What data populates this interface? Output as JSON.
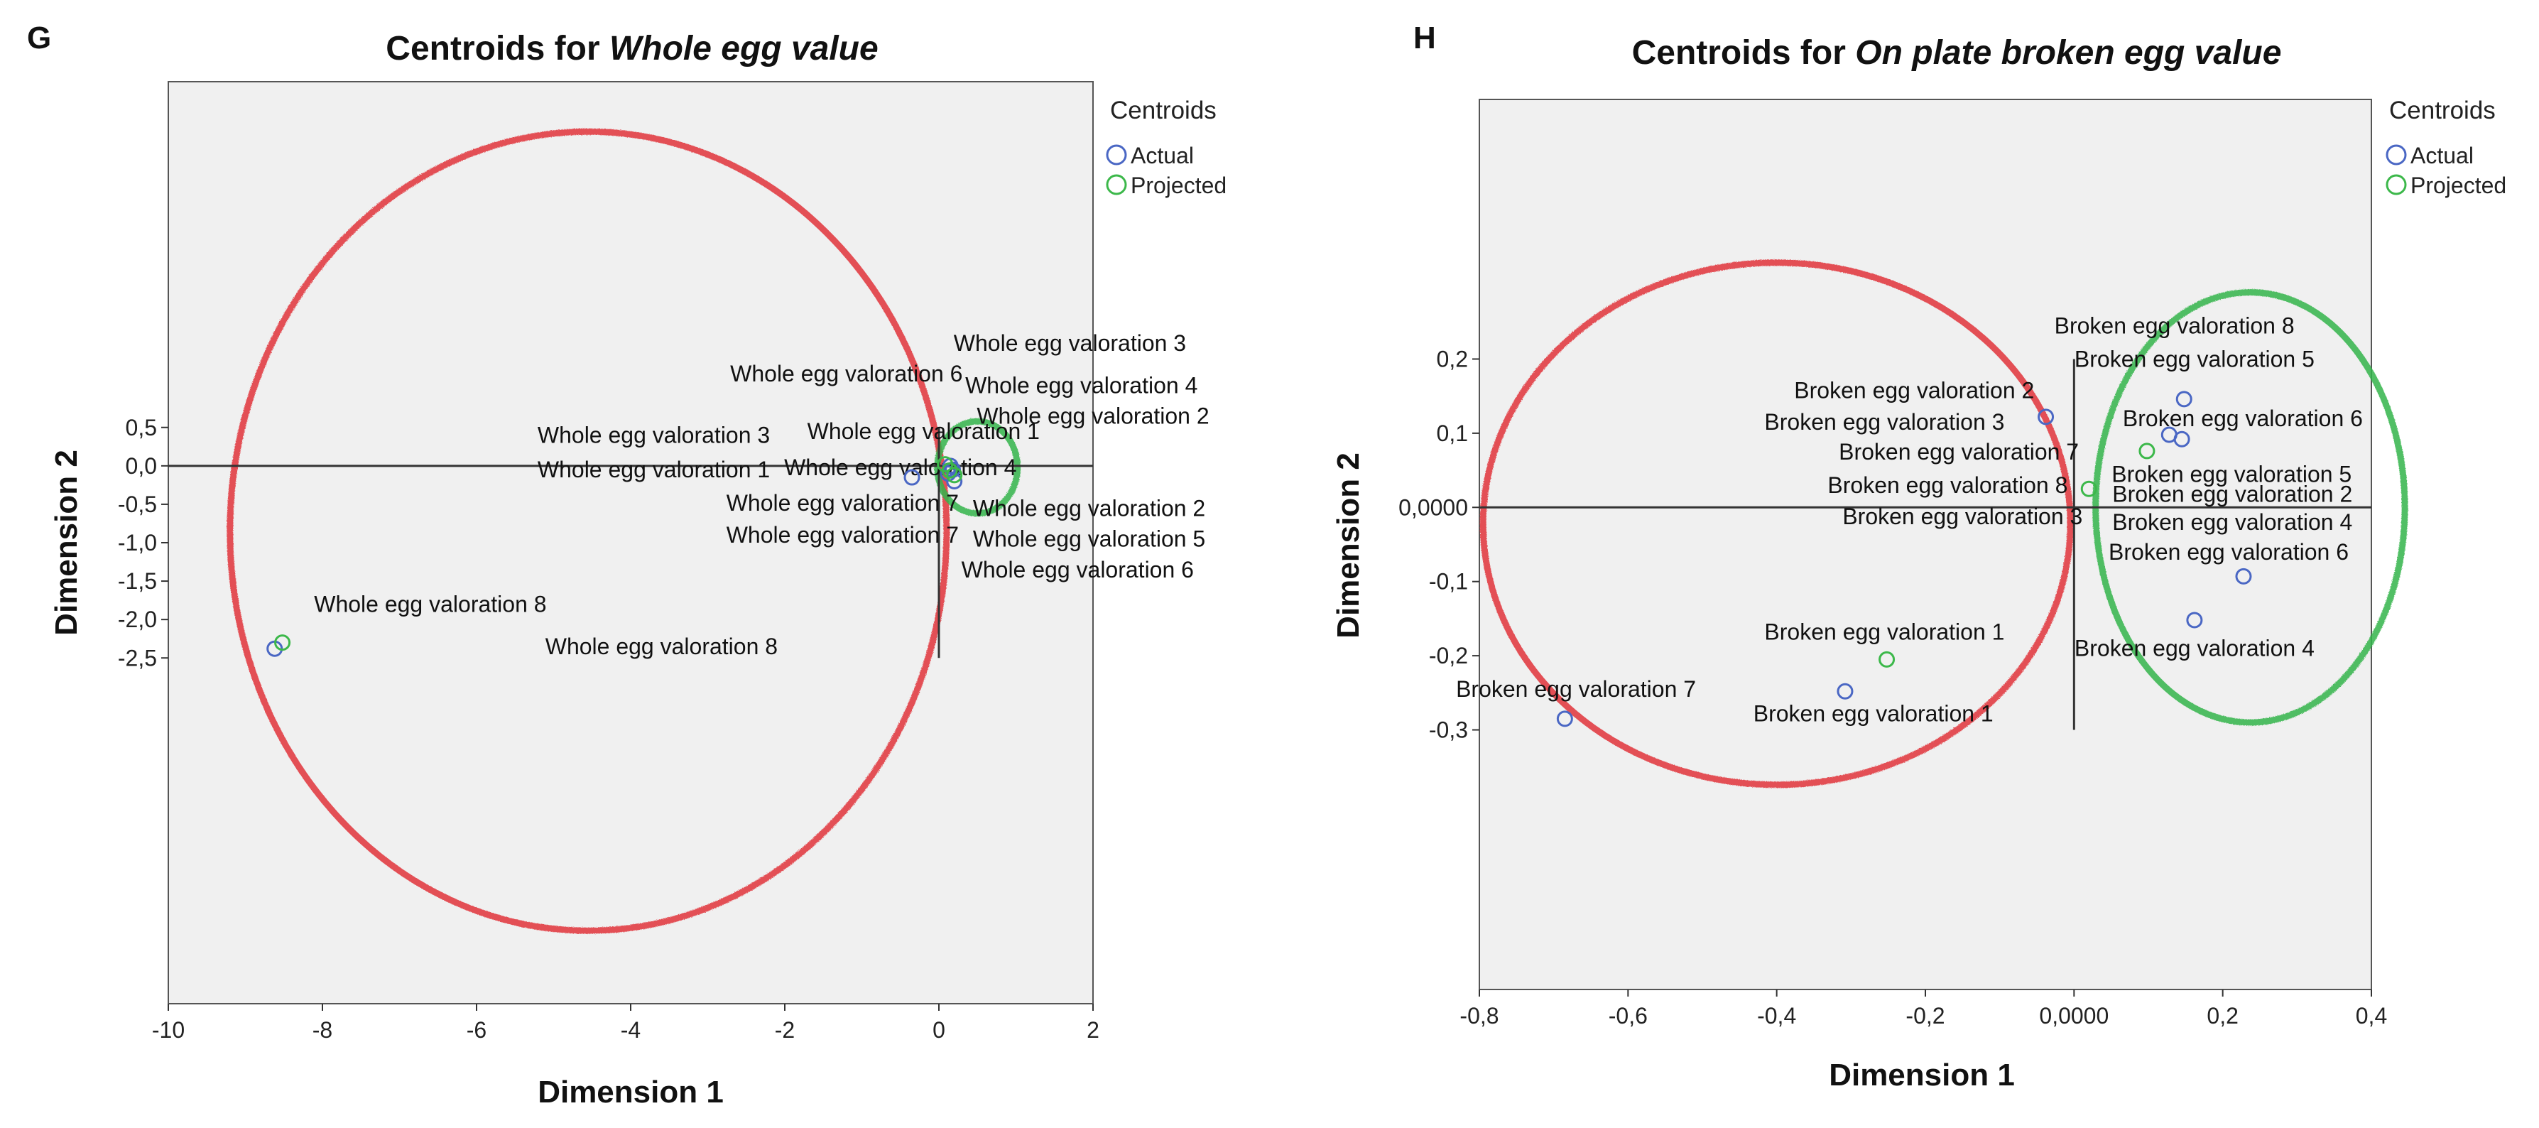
{
  "colors": {
    "actual": "#4a67c4",
    "projected": "#3cb84a",
    "ellipse_red": "#e0323a",
    "ellipse_green": "#34b44a",
    "plot_bg": "#f0f0f0",
    "axis": "#333333"
  },
  "chart_data": [
    {
      "panel_letter": "G",
      "type": "scatter",
      "title_prefix": "Centroids for",
      "title_italic": "Whole egg value",
      "xlabel": "Dimension 1",
      "ylabel": "Dimension 2",
      "xlim": [
        -10,
        2
      ],
      "ylim": [
        -7.0,
        5.0
      ],
      "xticks": [
        -10,
        -8,
        -6,
        -4,
        -2,
        0,
        2
      ],
      "xtick_labels": [
        "-10",
        "-8",
        "-6",
        "-4",
        "-2",
        "0",
        "2"
      ],
      "yticks": [
        0.5,
        0.0,
        -0.5,
        -1.0,
        -1.5,
        -2.0,
        -2.5
      ],
      "ytick_labels": [
        "0,5",
        "0,0",
        "-0,5",
        "-1,0",
        "-1,5",
        "-2,0",
        "-2,5"
      ],
      "reference_lines": {
        "horizontal_y": 0.0,
        "vertical_x": 0.0,
        "horizontal_x_range": [
          -10,
          2
        ],
        "vertical_y_range": [
          -2.5,
          0.5
        ]
      },
      "legend": {
        "title": "Centroids",
        "entries": [
          "Actual",
          "Projected"
        ],
        "position": "right"
      },
      "series": [
        {
          "name": "Actual",
          "points": [
            {
              "x": -8.62,
              "y": -2.38
            },
            {
              "x": -0.35,
              "y": -0.15
            },
            {
              "x": 0.15,
              "y": 0.0
            },
            {
              "x": 0.18,
              "y": -0.05
            },
            {
              "x": 0.2,
              "y": -0.2
            },
            {
              "x": 0.12,
              "y": -0.1
            }
          ]
        },
        {
          "name": "Projected",
          "points": [
            {
              "x": -8.52,
              "y": -2.3
            },
            {
              "x": 0.08,
              "y": 0.02
            },
            {
              "x": 0.14,
              "y": -0.06
            },
            {
              "x": 0.2,
              "y": -0.12
            }
          ]
        }
      ],
      "annotations": [
        {
          "text": "Whole egg valoration 3",
          "x": 1.7,
          "y": 1.6
        },
        {
          "text": "Whole egg valoration 6",
          "x": -1.2,
          "y": 1.2
        },
        {
          "text": "Whole egg valoration 4",
          "x": 1.85,
          "y": 1.05
        },
        {
          "text": "Whole egg valoration 2",
          "x": 2.0,
          "y": 0.65
        },
        {
          "text": "Whole egg valoration 3",
          "x": -3.7,
          "y": 0.4
        },
        {
          "text": "Whole egg valoration 1",
          "x": -0.2,
          "y": 0.45
        },
        {
          "text": "Whole egg valoration 1",
          "x": -3.7,
          "y": -0.05
        },
        {
          "text": "Whole egg valoration 4",
          "x": -0.5,
          "y": -0.02
        },
        {
          "text": "Whole egg valoration 7",
          "x": -1.25,
          "y": -0.48
        },
        {
          "text": "Whole egg valoration 2",
          "x": 1.95,
          "y": -0.55
        },
        {
          "text": "Whole egg valoration 7",
          "x": -1.25,
          "y": -0.9
        },
        {
          "text": "Whole egg valoration 5",
          "x": 1.95,
          "y": -0.95
        },
        {
          "text": "Whole egg valoration 6",
          "x": 1.8,
          "y": -1.35
        },
        {
          "text": "Whole egg valoration 8",
          "x": -6.6,
          "y": -1.8
        },
        {
          "text": "Whole egg valoration 8",
          "x": -3.6,
          "y": -2.35
        }
      ],
      "ellipses": [
        {
          "color": "red",
          "cx": -4.55,
          "cy": -0.85,
          "rx": 4.65,
          "ry": 5.2
        },
        {
          "color": "green",
          "cx": 0.5,
          "cy": -0.02,
          "rx": 0.52,
          "ry": 0.6
        }
      ]
    },
    {
      "panel_letter": "H",
      "type": "scatter",
      "title_prefix": "Centroids for",
      "title_italic": "On plate broken egg value",
      "xlabel": "Dimension 1",
      "ylabel": "Dimension 2",
      "xlim": [
        -0.8,
        0.4
      ],
      "ylim": [
        -0.65,
        0.55
      ],
      "xticks": [
        -0.8,
        -0.6,
        -0.4,
        -0.2,
        0.0,
        0.2,
        0.4
      ],
      "xtick_labels": [
        "-0,8",
        "-0,6",
        "-0,4",
        "-0,2",
        "0,0000",
        "0,2",
        "0,4"
      ],
      "yticks": [
        0.2,
        0.1,
        0.0,
        -0.1,
        -0.2,
        -0.3
      ],
      "ytick_labels": [
        "0,2",
        "0,1",
        "0,0000",
        "-0,1",
        "-0,2",
        "-0,3"
      ],
      "reference_lines": {
        "horizontal_y": 0.0,
        "vertical_x": 0.0,
        "horizontal_x_range": [
          -0.8,
          0.4
        ],
        "vertical_y_range": [
          -0.3,
          0.2
        ]
      },
      "legend": {
        "title": "Centroids",
        "entries": [
          "Actual",
          "Projected"
        ],
        "position": "right"
      },
      "series": [
        {
          "name": "Actual",
          "points": [
            {
              "x": -0.685,
              "y": -0.285
            },
            {
              "x": -0.308,
              "y": -0.248
            },
            {
              "x": -0.038,
              "y": 0.122
            },
            {
              "x": 0.128,
              "y": 0.098
            },
            {
              "x": 0.148,
              "y": 0.146
            },
            {
              "x": 0.145,
              "y": 0.092
            },
            {
              "x": 0.228,
              "y": -0.093
            },
            {
              "x": 0.162,
              "y": -0.152
            }
          ]
        },
        {
          "name": "Projected",
          "points": [
            {
              "x": -0.252,
              "y": -0.205
            },
            {
              "x": 0.098,
              "y": 0.076
            },
            {
              "x": 0.02,
              "y": 0.025
            }
          ]
        }
      ],
      "annotations": [
        {
          "text": "Broken egg valoration 8",
          "x": 0.135,
          "y": 0.245
        },
        {
          "text": "Broken egg valoration 5",
          "x": 0.162,
          "y": 0.2
        },
        {
          "text": "Broken egg valoration 2",
          "x": -0.215,
          "y": 0.158
        },
        {
          "text": "Broken egg valoration 6",
          "x": 0.227,
          "y": 0.12
        },
        {
          "text": "Broken egg valoration 3",
          "x": -0.255,
          "y": 0.115
        },
        {
          "text": "Broken egg valoration 7",
          "x": -0.155,
          "y": 0.075
        },
        {
          "text": "Broken egg valoration 5",
          "x": 0.212,
          "y": 0.045
        },
        {
          "text": "Broken egg valoration 8",
          "x": -0.17,
          "y": 0.03
        },
        {
          "text": "Broken egg valoration 2",
          "x": 0.213,
          "y": 0.018
        },
        {
          "text": "Broken egg valoration 3",
          "x": -0.15,
          "y": -0.012
        },
        {
          "text": "Broken egg valoration 4",
          "x": 0.213,
          "y": -0.02
        },
        {
          "text": "Broken egg valoration 6",
          "x": 0.208,
          "y": -0.06
        },
        {
          "text": "Broken egg valoration 1",
          "x": -0.255,
          "y": -0.168
        },
        {
          "text": "Broken egg valoration 4",
          "x": 0.162,
          "y": -0.19
        },
        {
          "text": "Broken egg valoration 7",
          "x": -0.67,
          "y": -0.245
        },
        {
          "text": "Broken egg valoration 1",
          "x": -0.27,
          "y": -0.278
        }
      ],
      "ellipses": [
        {
          "color": "red",
          "cx": -0.4,
          "cy": -0.022,
          "rx": 0.395,
          "ry": 0.352
        },
        {
          "color": "green",
          "cx": 0.237,
          "cy": 0.0,
          "rx": 0.208,
          "ry": 0.29
        }
      ]
    }
  ]
}
